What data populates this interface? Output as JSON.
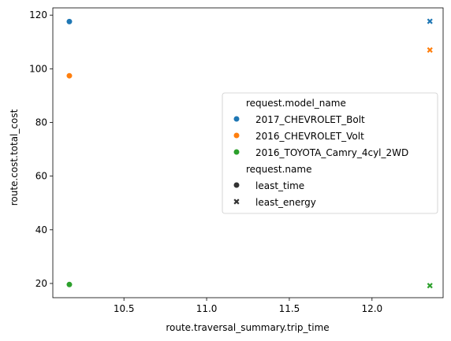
{
  "chart_data": {
    "type": "scatter",
    "xlabel": "route.traversal_summary.trip_time",
    "ylabel": "route.cost.total_cost",
    "xlim": [
      10.07,
      12.43
    ],
    "ylim": [
      14.7,
      122.7
    ],
    "x_ticks": [
      10.5,
      11.0,
      11.5,
      12.0
    ],
    "x_tick_labels": [
      "10.5",
      "11.0",
      "11.5",
      "12.0"
    ],
    "y_ticks": [
      20,
      40,
      60,
      80,
      100,
      120
    ],
    "y_tick_labels": [
      "20",
      "40",
      "60",
      "80",
      "100",
      "120"
    ],
    "grid": false,
    "legend_placement": "center-right",
    "hue_title": "request.model_name",
    "style_title": "request.name",
    "hue_levels": [
      {
        "name": "2017_CHEVROLET_Bolt",
        "color": "#1f77b4"
      },
      {
        "name": "2016_CHEVROLET_Volt",
        "color": "#ff7f0e"
      },
      {
        "name": "2016_TOYOTA_Camry_4cyl_2WD",
        "color": "#2ca02c"
      }
    ],
    "style_levels": [
      {
        "name": "least_time",
        "marker": "circle"
      },
      {
        "name": "least_energy",
        "marker": "x"
      }
    ],
    "points": [
      {
        "x": 10.17,
        "y": 117.6,
        "model": "2017_CHEVROLET_Bolt",
        "request": "least_time"
      },
      {
        "x": 12.35,
        "y": 117.7,
        "model": "2017_CHEVROLET_Bolt",
        "request": "least_energy"
      },
      {
        "x": 10.17,
        "y": 97.4,
        "model": "2016_CHEVROLET_Volt",
        "request": "least_time"
      },
      {
        "x": 12.35,
        "y": 107.0,
        "model": "2016_CHEVROLET_Volt",
        "request": "least_energy"
      },
      {
        "x": 10.17,
        "y": 19.6,
        "model": "2016_TOYOTA_Camry_4cyl_2WD",
        "request": "least_time"
      },
      {
        "x": 12.35,
        "y": 19.2,
        "model": "2016_TOYOTA_Camry_4cyl_2WD",
        "request": "least_energy"
      }
    ]
  }
}
